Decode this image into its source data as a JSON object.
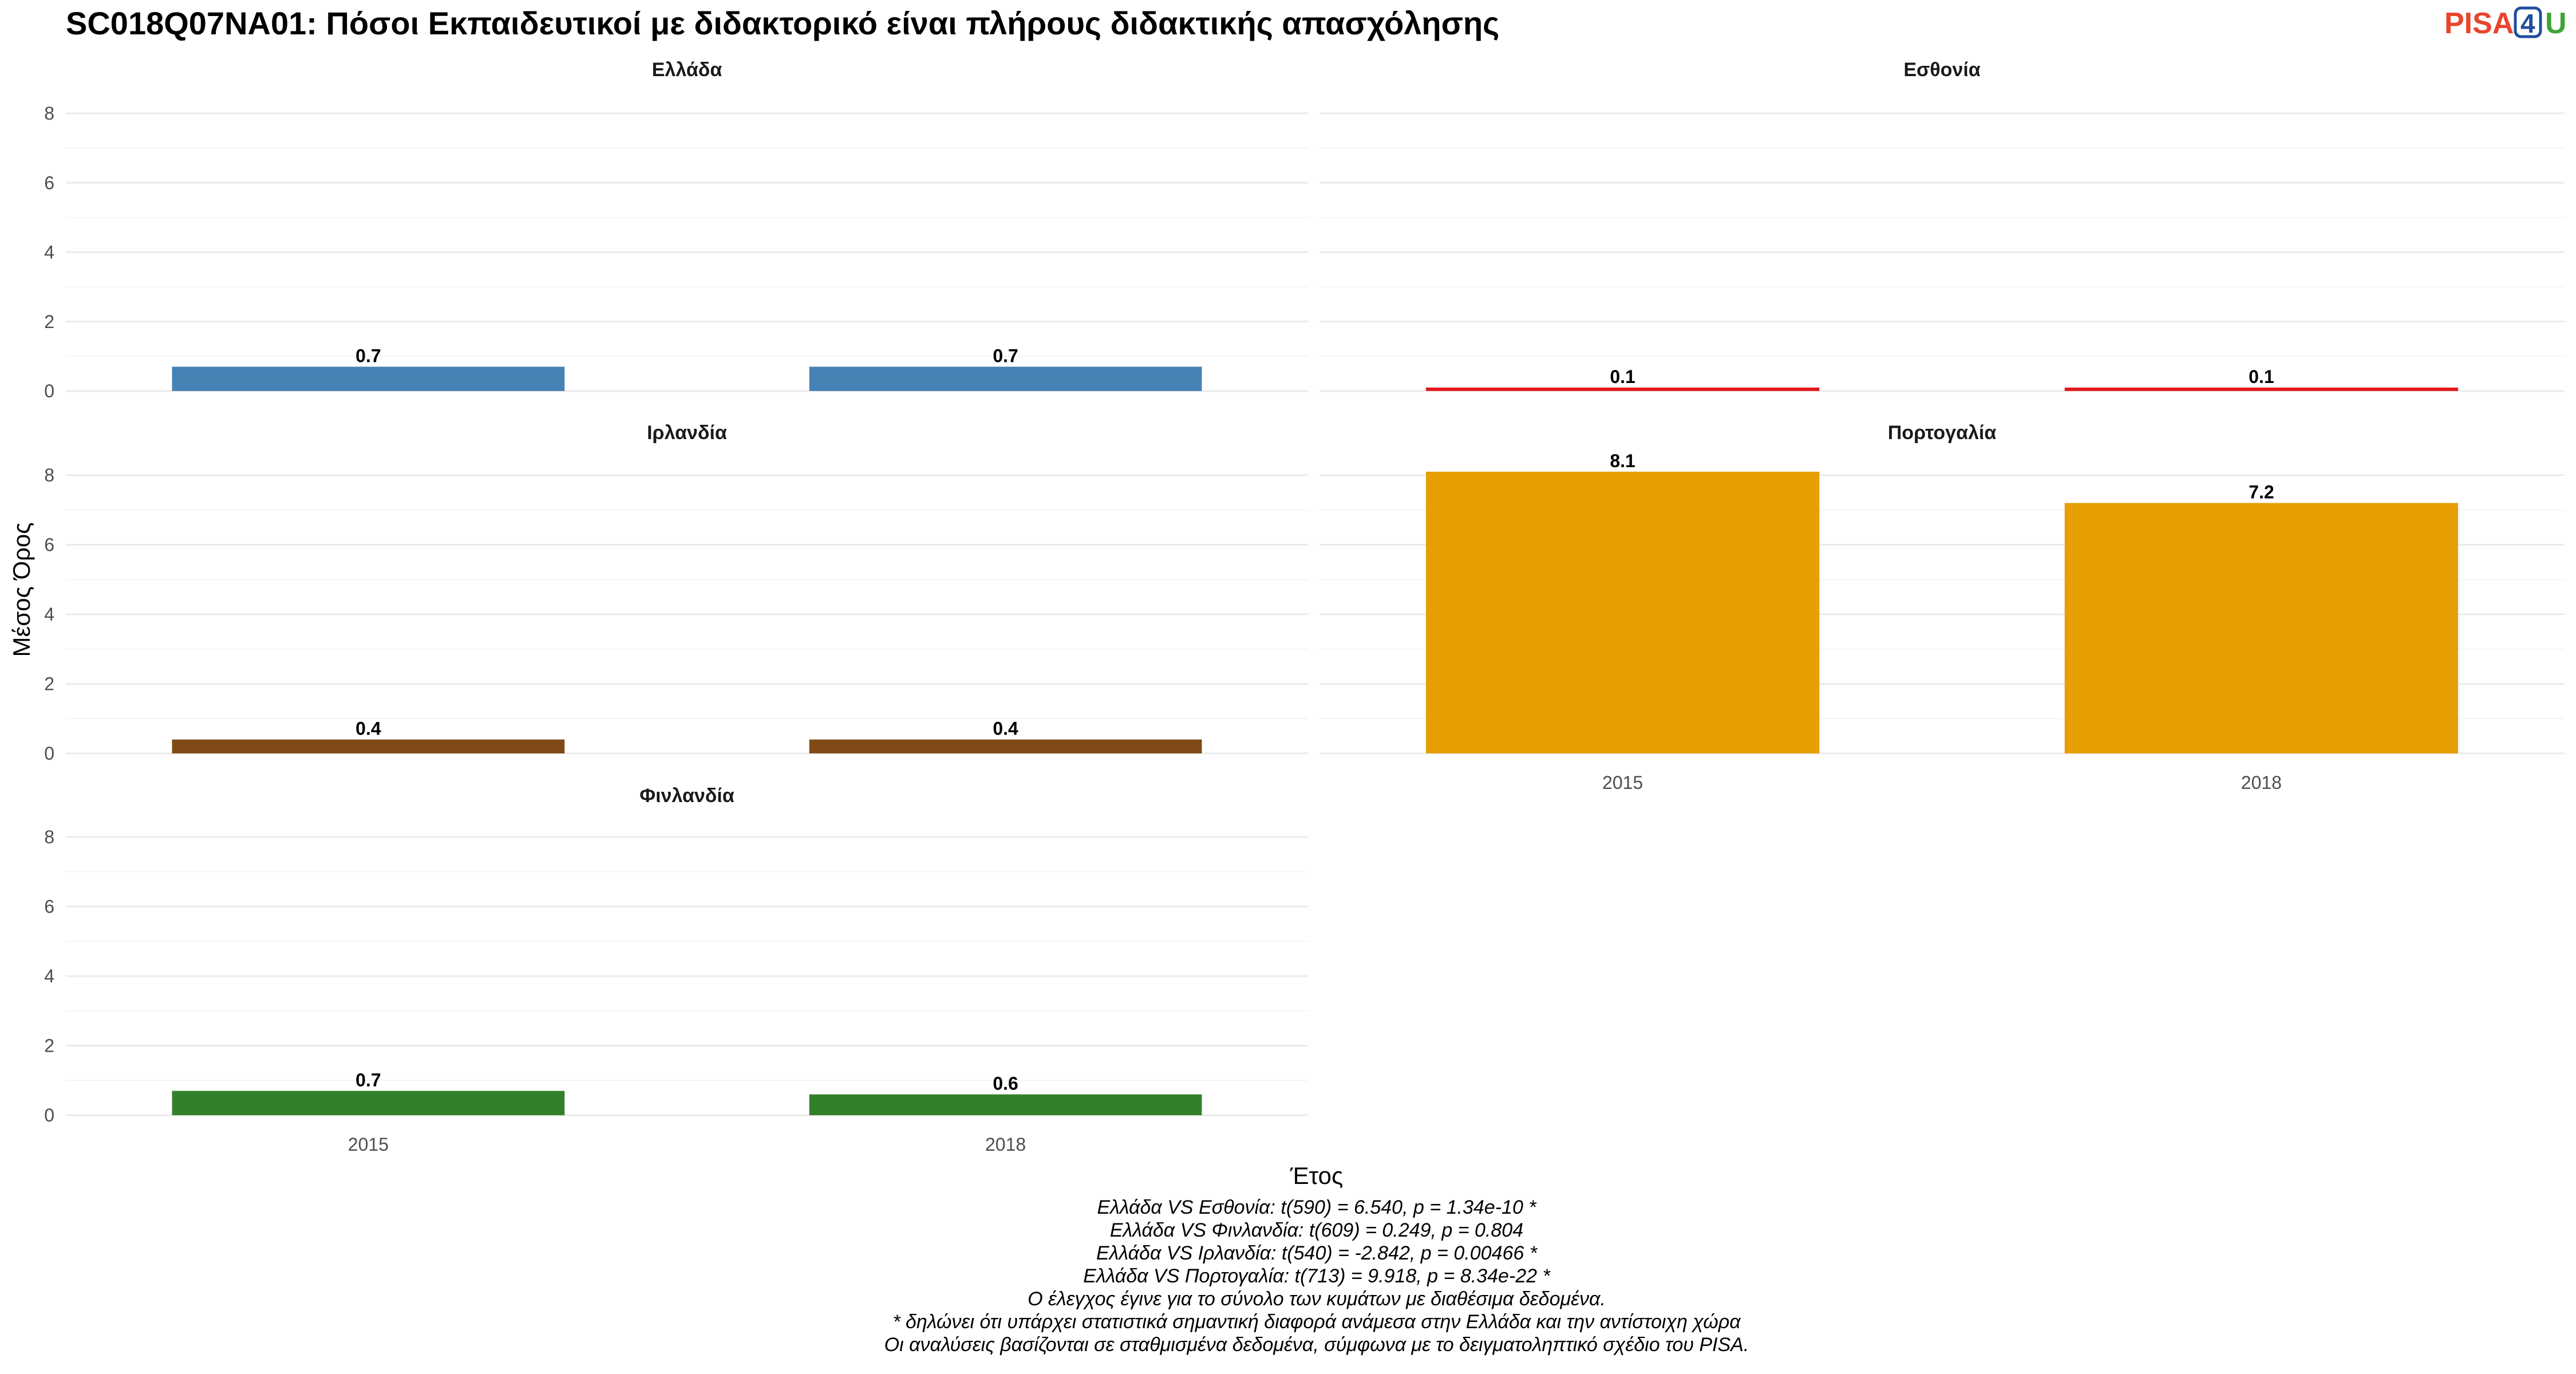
{
  "chart_data": {
    "type": "bar",
    "title": "SC018Q07NA01: Πόσοι Εκπαιδευτικοί με διδακτορικό είναι πλήρους διδακτικής απασχόλησης",
    "xlabel": "Έτος",
    "ylabel": "Μέσος Όρος",
    "ylim": [
      0,
      8.6
    ],
    "yticks": [
      "0",
      "2",
      "4",
      "6",
      "8"
    ],
    "grid": true,
    "categories": [
      "2015",
      "2018"
    ],
    "panels": [
      {
        "name": "Ελλάδα",
        "color": "#4682B4",
        "values": [
          0.7,
          0.7
        ],
        "labels": [
          "0.7",
          "0.7"
        ]
      },
      {
        "name": "Εσθονία",
        "color": "#E41A1C",
        "values": [
          0.1,
          0.1
        ],
        "labels": [
          "0.1",
          "0.1"
        ]
      },
      {
        "name": "Ιρλανδία",
        "color": "#7F4A16",
        "values": [
          0.4,
          0.4
        ],
        "labels": [
          "0.4",
          "0.4"
        ]
      },
      {
        "name": "Πορτογαλία",
        "color": "#E69F00",
        "values": [
          8.1,
          7.2
        ],
        "labels": [
          "8.1",
          "7.2"
        ]
      },
      {
        "name": "Φινλανδία",
        "color": "#33802A",
        "values": [
          0.7,
          0.6
        ],
        "labels": [
          "0.7",
          "0.6"
        ]
      }
    ],
    "caption": [
      "Ελλάδα VS Εσθονία: t(590) = 6.540, p = 1.34e-10 *",
      "Ελλάδα VS Φινλανδία: t(609) = 0.249, p = 0.804",
      "Ελλάδα VS Ιρλανδία: t(540) = -2.842, p = 0.00466 *",
      "Ελλάδα VS Πορτογαλία: t(713) = 9.918, p = 8.34e-22 *",
      "Ο έλεγχος έγινε για το σύνολο των κυμάτων με διαθέσιμα δεδομένα.",
      "* δηλώνει ότι υπάρχει στατιστικά σημαντική διαφορά ανάμεσα στην Ελλάδα και την αντίστοιχη χώρα",
      "Οι αναλύσεις βασίζονται σε σταθμισμένα δεδομένα, σύμφωνα με το δειγματοληπτικό σχέδιο του PISA."
    ]
  },
  "logo": {
    "text_1": "PISA",
    "text_2": "4",
    "text_3": "U",
    "color_1": "#E8452C",
    "color_2": "#1F4E9C",
    "color_3": "#3FA535"
  }
}
